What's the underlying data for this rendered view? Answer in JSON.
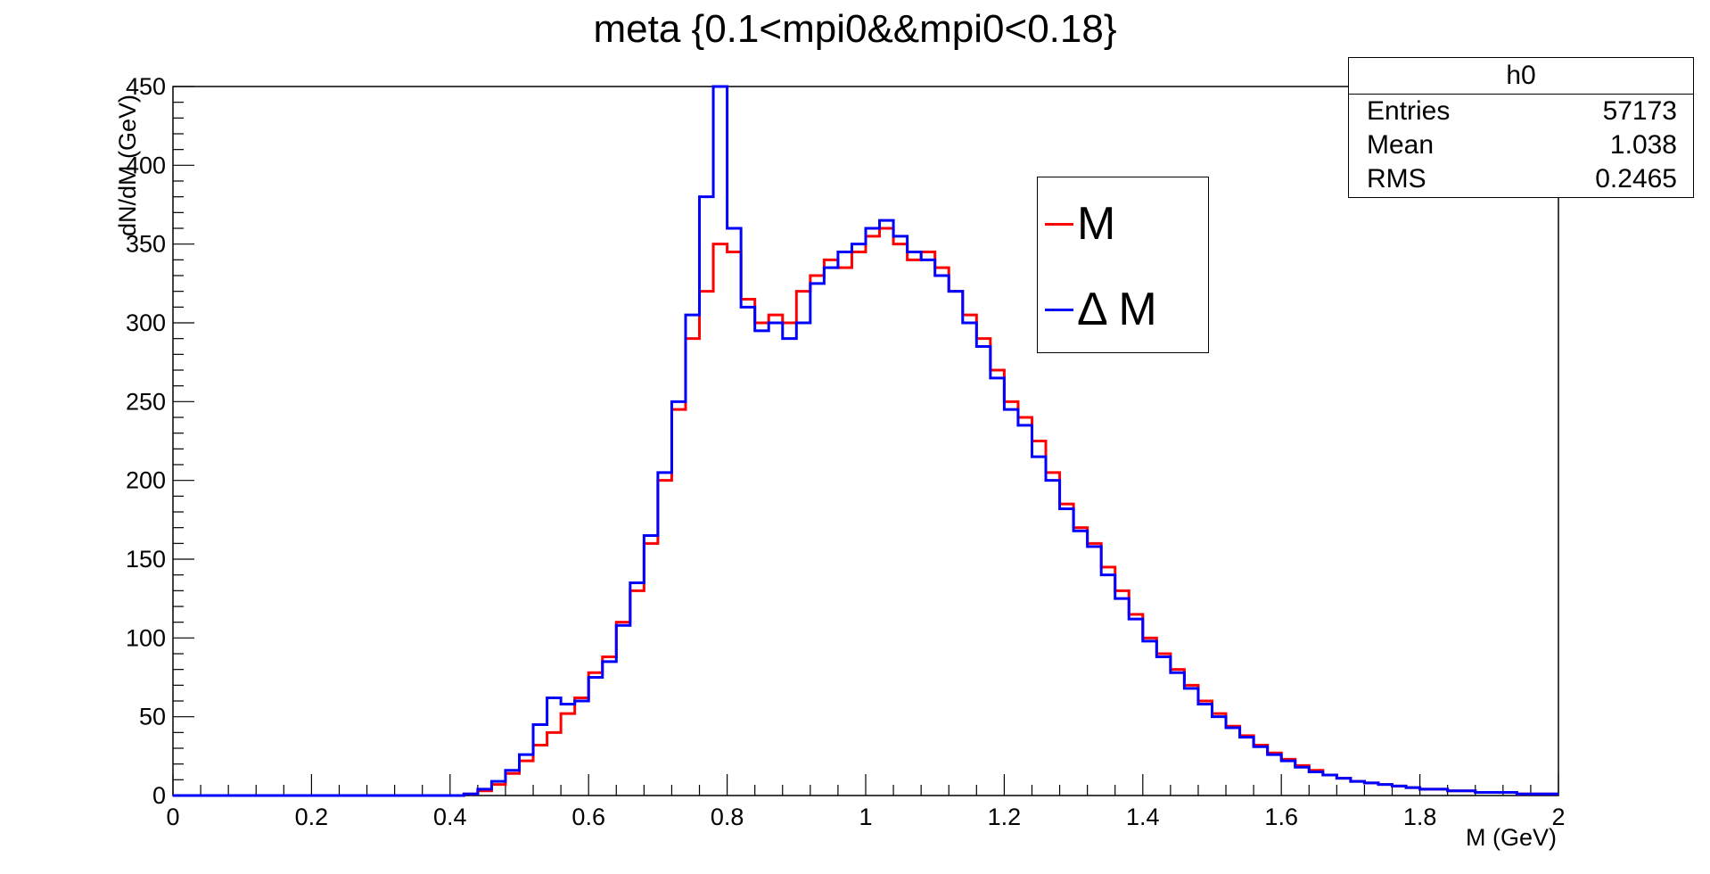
{
  "chart_data": {
    "type": "histogram-step",
    "title": "meta {0.1<mpi0&&mpi0<0.18}",
    "xlabel": "M (GeV)",
    "ylabel": "dN/dM (GeV)",
    "xlim": [
      0,
      2
    ],
    "ylim": [
      0,
      450
    ],
    "x_ticks": [
      "0",
      "0.2",
      "0.4",
      "0.6",
      "0.8",
      "1",
      "1.2",
      "1.4",
      "1.6",
      "1.8",
      "2"
    ],
    "y_ticks": [
      "0",
      "50",
      "100",
      "150",
      "200",
      "250",
      "300",
      "350",
      "400",
      "450"
    ],
    "grid": false,
    "legend_placement": "upper-middle-right",
    "stats_box": {
      "name": "h0",
      "rows": [
        {
          "label": "Entries",
          "value": "57173"
        },
        {
          "label": "Mean",
          "value": "1.038"
        },
        {
          "label": "RMS",
          "value": "0.2465"
        }
      ]
    },
    "series": [
      {
        "name": "M",
        "color": "#ff0000",
        "x": [
          0.0,
          0.05,
          0.1,
          0.15,
          0.2,
          0.25,
          0.3,
          0.35,
          0.4,
          0.42,
          0.44,
          0.46,
          0.48,
          0.5,
          0.52,
          0.54,
          0.56,
          0.58,
          0.6,
          0.62,
          0.64,
          0.66,
          0.68,
          0.7,
          0.72,
          0.74,
          0.76,
          0.78,
          0.8,
          0.82,
          0.84,
          0.86,
          0.88,
          0.9,
          0.92,
          0.94,
          0.96,
          0.98,
          1.0,
          1.02,
          1.04,
          1.06,
          1.08,
          1.1,
          1.12,
          1.14,
          1.16,
          1.18,
          1.2,
          1.22,
          1.24,
          1.26,
          1.28,
          1.3,
          1.32,
          1.34,
          1.36,
          1.38,
          1.4,
          1.42,
          1.44,
          1.46,
          1.48,
          1.5,
          1.52,
          1.54,
          1.56,
          1.58,
          1.6,
          1.62,
          1.64,
          1.66,
          1.68,
          1.7,
          1.72,
          1.74,
          1.76,
          1.78,
          1.8,
          1.82,
          1.84,
          1.86,
          1.88,
          1.9,
          1.92,
          1.94,
          1.96,
          1.98,
          2.0
        ],
        "y": [
          0,
          0,
          0,
          0,
          0,
          0,
          0,
          0,
          0,
          1,
          3,
          7,
          14,
          22,
          32,
          40,
          52,
          62,
          78,
          88,
          110,
          130,
          160,
          200,
          245,
          290,
          320,
          350,
          345,
          315,
          300,
          305,
          300,
          320,
          330,
          340,
          335,
          345,
          355,
          360,
          350,
          340,
          345,
          335,
          320,
          305,
          290,
          270,
          250,
          240,
          225,
          205,
          185,
          170,
          160,
          145,
          130,
          115,
          100,
          90,
          80,
          70,
          60,
          52,
          44,
          38,
          32,
          27,
          23,
          19,
          16,
          13,
          11,
          9,
          8,
          7,
          6,
          5,
          4,
          4,
          3,
          3,
          2,
          2,
          2,
          1,
          1,
          1,
          1
        ]
      },
      {
        "name": "Δ M",
        "color": "#0000ff",
        "x": [
          0.0,
          0.05,
          0.1,
          0.15,
          0.2,
          0.25,
          0.3,
          0.35,
          0.4,
          0.42,
          0.44,
          0.46,
          0.48,
          0.5,
          0.52,
          0.54,
          0.56,
          0.58,
          0.6,
          0.62,
          0.64,
          0.66,
          0.68,
          0.7,
          0.72,
          0.74,
          0.76,
          0.78,
          0.8,
          0.82,
          0.84,
          0.86,
          0.88,
          0.9,
          0.92,
          0.94,
          0.96,
          0.98,
          1.0,
          1.02,
          1.04,
          1.06,
          1.08,
          1.1,
          1.12,
          1.14,
          1.16,
          1.18,
          1.2,
          1.22,
          1.24,
          1.26,
          1.28,
          1.3,
          1.32,
          1.34,
          1.36,
          1.38,
          1.4,
          1.42,
          1.44,
          1.46,
          1.48,
          1.5,
          1.52,
          1.54,
          1.56,
          1.58,
          1.6,
          1.62,
          1.64,
          1.66,
          1.68,
          1.7,
          1.72,
          1.74,
          1.76,
          1.78,
          1.8,
          1.82,
          1.84,
          1.86,
          1.88,
          1.9,
          1.92,
          1.94,
          1.96,
          1.98,
          2.0
        ],
        "y": [
          0,
          0,
          0,
          0,
          0,
          0,
          0,
          0,
          0,
          1,
          4,
          9,
          16,
          26,
          45,
          62,
          58,
          60,
          75,
          85,
          108,
          135,
          165,
          205,
          250,
          305,
          380,
          450,
          360,
          310,
          295,
          300,
          290,
          300,
          325,
          335,
          345,
          350,
          360,
          365,
          355,
          345,
          340,
          330,
          320,
          300,
          285,
          265,
          245,
          235,
          215,
          200,
          182,
          168,
          158,
          140,
          125,
          112,
          98,
          88,
          78,
          68,
          58,
          50,
          43,
          37,
          31,
          26,
          22,
          18,
          15,
          13,
          11,
          9,
          8,
          7,
          6,
          5,
          4,
          4,
          3,
          3,
          2,
          2,
          2,
          1,
          1,
          1,
          1
        ]
      }
    ]
  }
}
